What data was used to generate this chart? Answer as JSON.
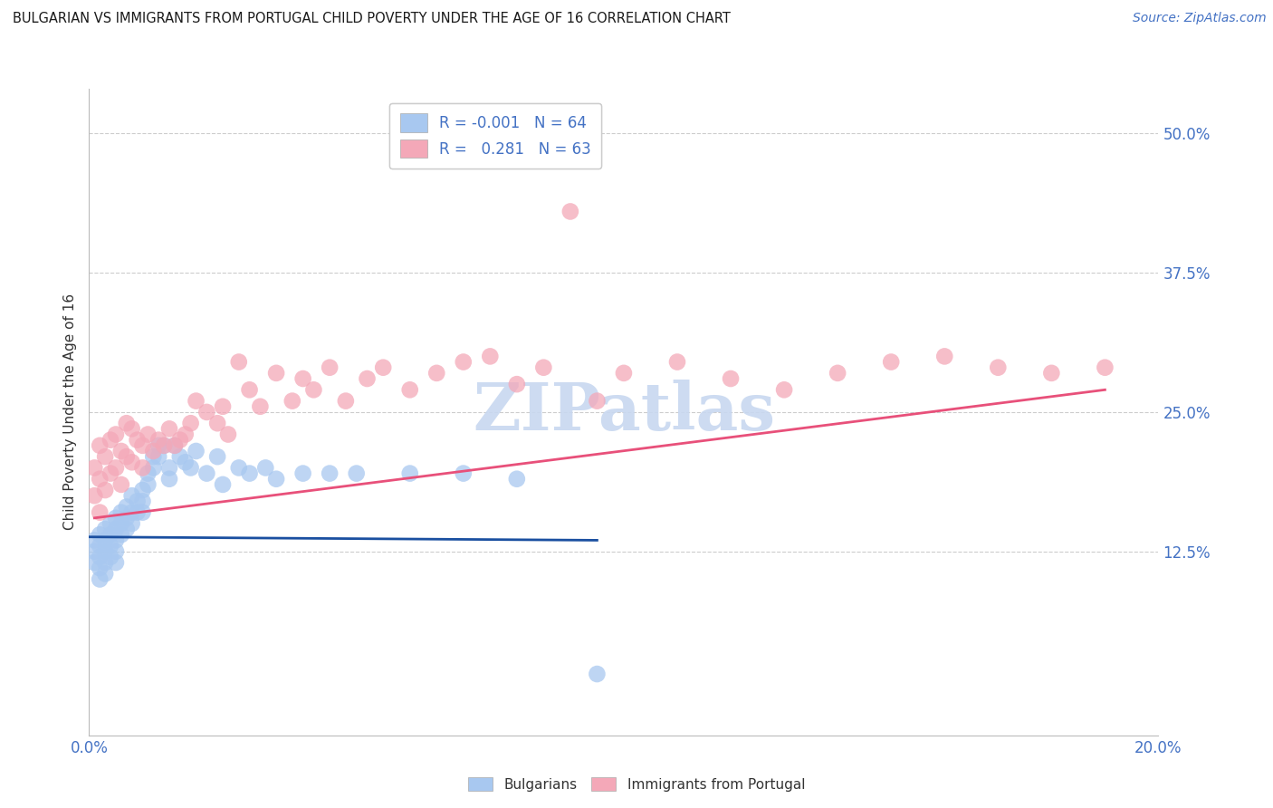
{
  "title": "BULGARIAN VS IMMIGRANTS FROM PORTUGAL CHILD POVERTY UNDER THE AGE OF 16 CORRELATION CHART",
  "source": "Source: ZipAtlas.com",
  "ylabel": "Child Poverty Under the Age of 16",
  "xlim": [
    0.0,
    0.2
  ],
  "ylim": [
    -0.04,
    0.54
  ],
  "yticks": [
    0.125,
    0.25,
    0.375,
    0.5
  ],
  "ytick_labels": [
    "12.5%",
    "25.0%",
    "37.5%",
    "50.0%"
  ],
  "xticks": [
    0.0,
    0.05,
    0.1,
    0.15,
    0.2
  ],
  "xtick_labels": [
    "0.0%",
    "",
    "",
    "",
    "20.0%"
  ],
  "legend_blue_r": "-0.001",
  "legend_blue_n": "64",
  "legend_pink_r": "0.281",
  "legend_pink_n": "63",
  "legend_label_blue": "Bulgarians",
  "legend_label_pink": "Immigrants from Portugal",
  "blue_color": "#a8c8f0",
  "pink_color": "#f4a8b8",
  "blue_line_color": "#1a4fa0",
  "pink_line_color": "#e8507a",
  "title_color": "#1a1a1a",
  "axis_label_color": "#333333",
  "tick_label_color": "#4472c4",
  "grid_color": "#cccccc",
  "watermark_color": "#c8d8f0",
  "blue_scatter_x": [
    0.001,
    0.001,
    0.001,
    0.002,
    0.002,
    0.002,
    0.002,
    0.002,
    0.003,
    0.003,
    0.003,
    0.003,
    0.003,
    0.004,
    0.004,
    0.004,
    0.004,
    0.005,
    0.005,
    0.005,
    0.005,
    0.005,
    0.006,
    0.006,
    0.006,
    0.007,
    0.007,
    0.007,
    0.008,
    0.008,
    0.008,
    0.009,
    0.009,
    0.01,
    0.01,
    0.01,
    0.011,
    0.011,
    0.012,
    0.012,
    0.013,
    0.013,
    0.014,
    0.015,
    0.015,
    0.016,
    0.017,
    0.018,
    0.019,
    0.02,
    0.022,
    0.024,
    0.025,
    0.028,
    0.03,
    0.033,
    0.035,
    0.04,
    0.045,
    0.05,
    0.06,
    0.07,
    0.08,
    0.095
  ],
  "blue_scatter_y": [
    0.135,
    0.125,
    0.115,
    0.14,
    0.13,
    0.12,
    0.11,
    0.1,
    0.145,
    0.135,
    0.125,
    0.115,
    0.105,
    0.15,
    0.14,
    0.13,
    0.12,
    0.155,
    0.145,
    0.135,
    0.125,
    0.115,
    0.16,
    0.15,
    0.14,
    0.165,
    0.155,
    0.145,
    0.175,
    0.16,
    0.15,
    0.17,
    0.16,
    0.18,
    0.17,
    0.16,
    0.195,
    0.185,
    0.21,
    0.2,
    0.22,
    0.21,
    0.22,
    0.2,
    0.19,
    0.22,
    0.21,
    0.205,
    0.2,
    0.215,
    0.195,
    0.21,
    0.185,
    0.2,
    0.195,
    0.2,
    0.19,
    0.195,
    0.195,
    0.195,
    0.195,
    0.195,
    0.19,
    0.015
  ],
  "pink_scatter_x": [
    0.001,
    0.001,
    0.002,
    0.002,
    0.002,
    0.003,
    0.003,
    0.004,
    0.004,
    0.005,
    0.005,
    0.006,
    0.006,
    0.007,
    0.007,
    0.008,
    0.008,
    0.009,
    0.01,
    0.01,
    0.011,
    0.012,
    0.013,
    0.014,
    0.015,
    0.016,
    0.017,
    0.018,
    0.019,
    0.02,
    0.022,
    0.024,
    0.025,
    0.026,
    0.028,
    0.03,
    0.032,
    0.035,
    0.038,
    0.04,
    0.042,
    0.045,
    0.048,
    0.052,
    0.055,
    0.06,
    0.065,
    0.07,
    0.075,
    0.08,
    0.085,
    0.09,
    0.095,
    0.1,
    0.11,
    0.12,
    0.13,
    0.14,
    0.15,
    0.16,
    0.17,
    0.18,
    0.19
  ],
  "pink_scatter_y": [
    0.2,
    0.175,
    0.22,
    0.19,
    0.16,
    0.21,
    0.18,
    0.225,
    0.195,
    0.23,
    0.2,
    0.215,
    0.185,
    0.24,
    0.21,
    0.235,
    0.205,
    0.225,
    0.22,
    0.2,
    0.23,
    0.215,
    0.225,
    0.22,
    0.235,
    0.22,
    0.225,
    0.23,
    0.24,
    0.26,
    0.25,
    0.24,
    0.255,
    0.23,
    0.295,
    0.27,
    0.255,
    0.285,
    0.26,
    0.28,
    0.27,
    0.29,
    0.26,
    0.28,
    0.29,
    0.27,
    0.285,
    0.295,
    0.3,
    0.275,
    0.29,
    0.43,
    0.26,
    0.285,
    0.295,
    0.28,
    0.27,
    0.285,
    0.295,
    0.3,
    0.29,
    0.285,
    0.29
  ],
  "blue_trend_x": [
    0.0,
    0.095
  ],
  "blue_trend_y": [
    0.138,
    0.135
  ],
  "pink_trend_x": [
    0.001,
    0.19
  ],
  "pink_trend_y": [
    0.155,
    0.27
  ]
}
